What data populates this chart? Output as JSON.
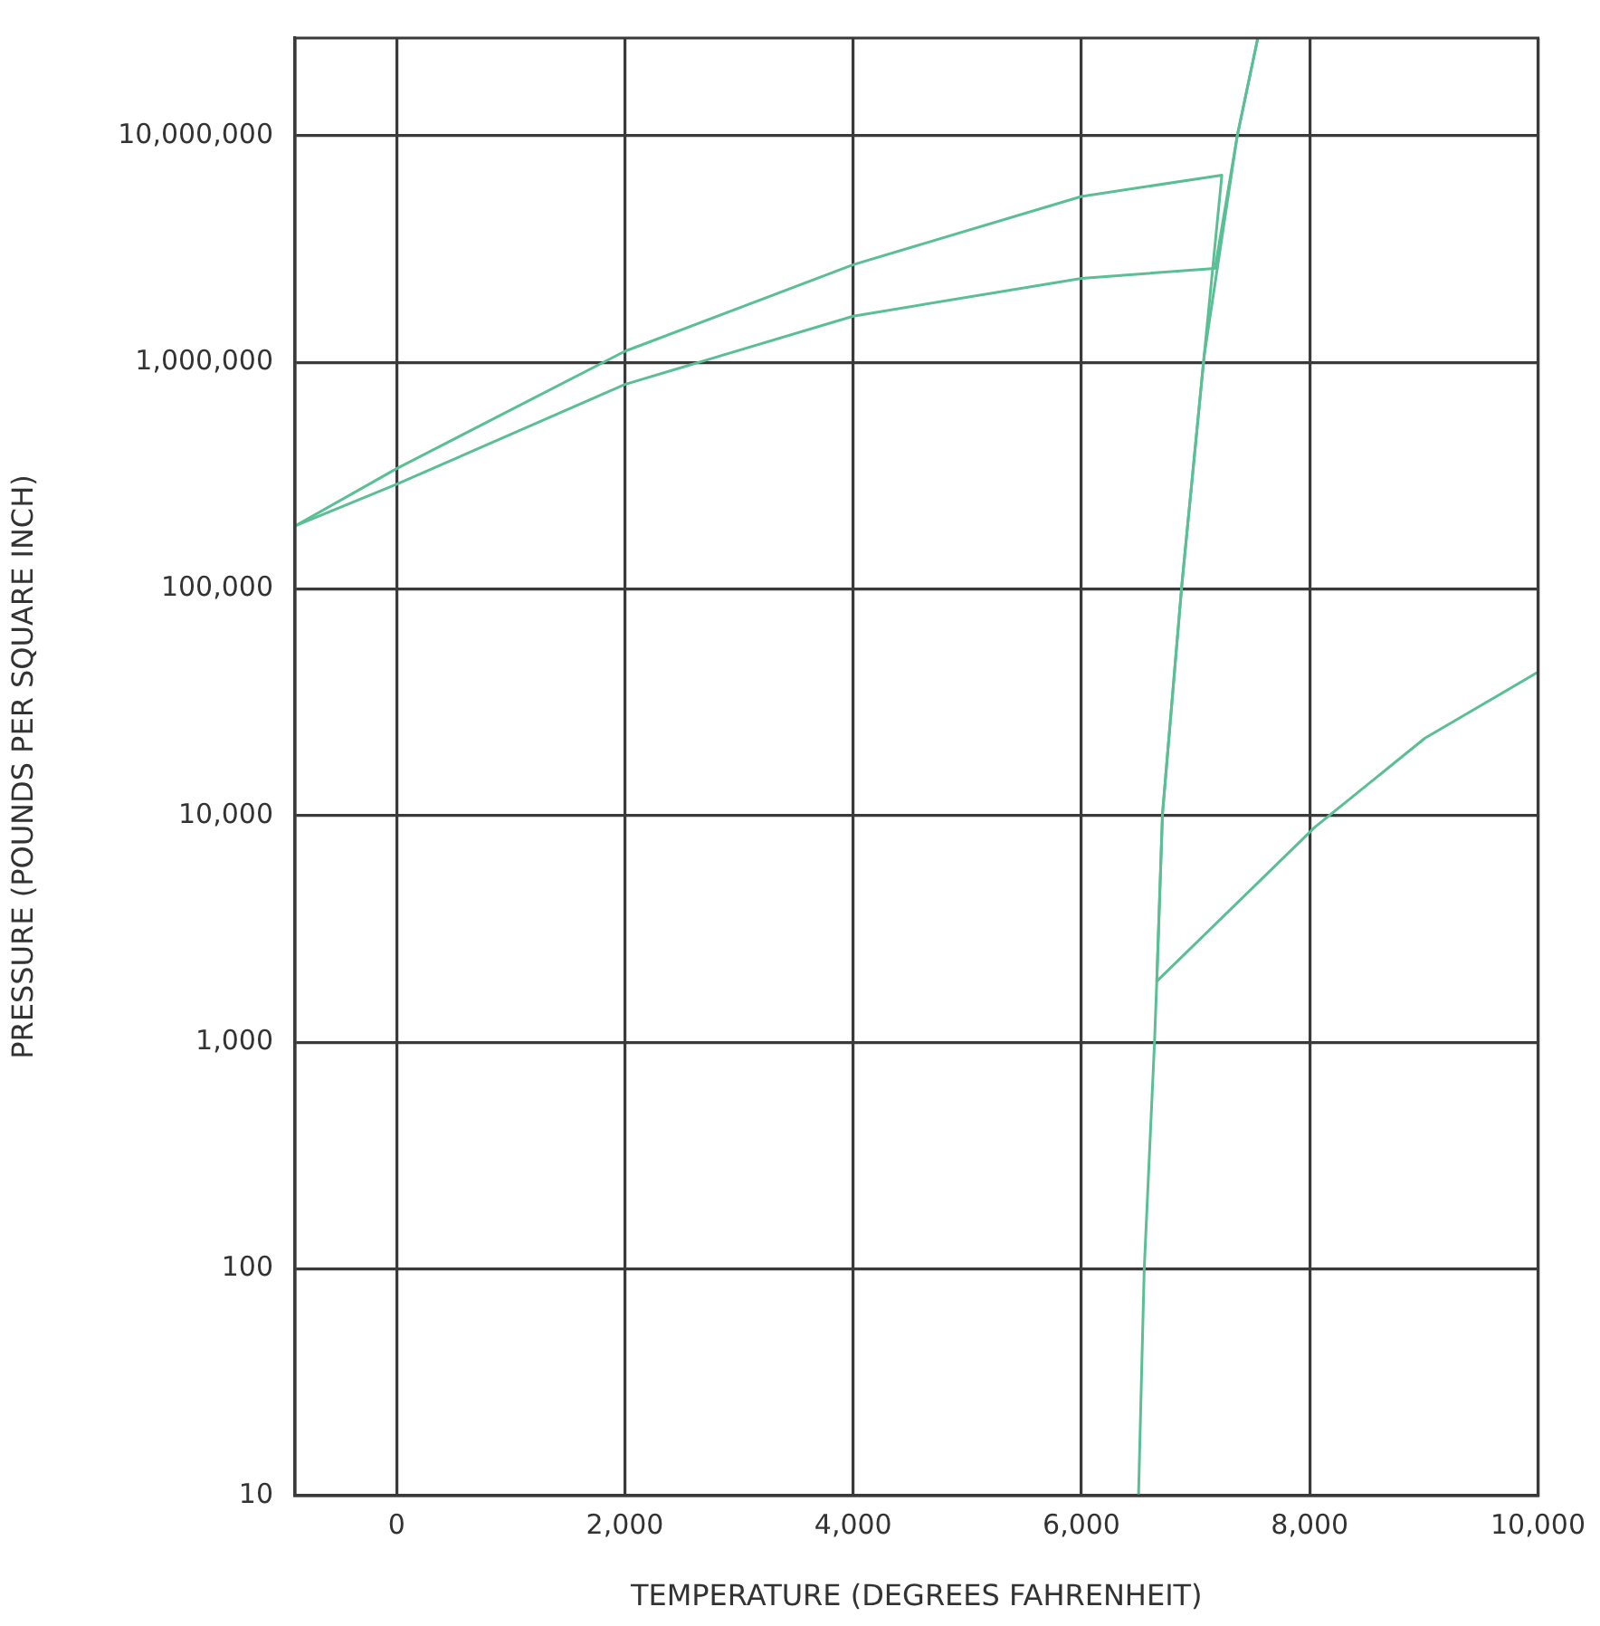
{
  "chart_data": {
    "type": "line",
    "xlabel": "TEMPERATURE (DEGREES FAHRENHEIT)",
    "ylabel": "PRESSURE (POUNDS PER SQUARE INCH)",
    "series": [
      {
        "color": "#5bbf95",
        "x": [
          -890,
          0,
          2000,
          4000,
          6000,
          7230,
          7075,
          6880,
          6710,
          6660,
          6640,
          6550,
          6500
        ],
        "values": [
          190000,
          340000,
          1120000,
          2700000,
          5400000,
          6700000,
          1070000,
          105000,
          10200,
          1860,
          1000,
          100,
          10
        ]
      },
      {
        "color": "#5bbf95",
        "x": [
          -890,
          0,
          2000,
          4000,
          6000,
          7170,
          7365,
          7545
        ],
        "values": [
          190000,
          290000,
          800000,
          1600000,
          2350000,
          2600000,
          10000000,
          27000000
        ]
      },
      {
        "color": "#5bbf95",
        "x": [
          7545,
          7365,
          7075,
          6880,
          6710,
          6660,
          8045,
          9010,
          10000
        ],
        "values": [
          27000000,
          10000000,
          1070000,
          105000,
          10200,
          1860,
          8900,
          22000,
          43000
        ]
      }
    ],
    "xlim": [
      -890,
      10000
    ],
    "xticks": [
      {
        "value": 0,
        "label": "0"
      },
      {
        "value": 2000,
        "label": "2,000"
      },
      {
        "value": 4000,
        "label": "4,000"
      },
      {
        "value": 6000,
        "label": "6,000"
      },
      {
        "value": 8000,
        "label": "8,000"
      },
      {
        "value": 10000,
        "label": "10,000"
      }
    ],
    "ylim": [
      10,
      27000000
    ],
    "yticks": [
      {
        "value": 10,
        "label": "10"
      },
      {
        "value": 100,
        "label": "100"
      },
      {
        "value": 1000,
        "label": "1,000"
      },
      {
        "value": 10000,
        "label": "10,000"
      },
      {
        "value": 100000,
        "label": "100,000"
      },
      {
        "value": 1000000,
        "label": "1,000,000"
      },
      {
        "value": 10000000,
        "label": "10,000,000"
      }
    ],
    "log": "y",
    "grid": true,
    "legend": false,
    "marker": "none"
  }
}
